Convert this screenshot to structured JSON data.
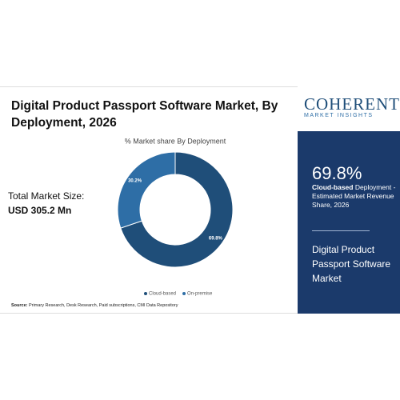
{
  "chart_data": {
    "type": "pie",
    "title": "Digital Product Passport Software Market, By Deployment, 2026",
    "subtitle": "% Market share By Deployment",
    "categories": [
      "Cloud-based",
      "On-premise"
    ],
    "values": [
      69.8,
      30.2
    ],
    "value_labels": [
      "69.8%",
      "30.2%"
    ],
    "colors": [
      "#1f4e79",
      "#2e6ea6"
    ],
    "donut": true
  },
  "market_size": {
    "label": "Total Market Size:",
    "value": "USD 305.2 Mn"
  },
  "source": {
    "label": "Source:",
    "text": "Primary Research, Desk Research, Paid subscriptions, CMI Data Repository"
  },
  "logo": {
    "name": "COHERENT",
    "tagline": "MARKET INSIGHTS"
  },
  "panel": {
    "highlight": "69.8%",
    "highlight_bold": "Cloud-based",
    "highlight_text": " Deployment - Estimated Market Revenue Share, 2026",
    "market_name": "Digital Product Passport Software Market"
  }
}
